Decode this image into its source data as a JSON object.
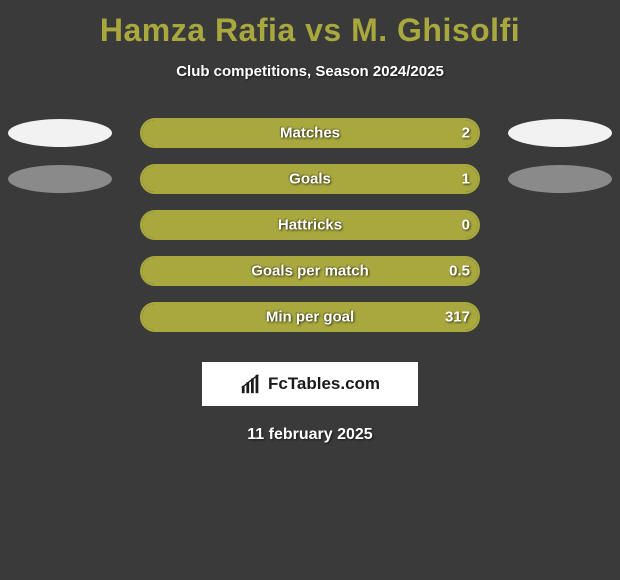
{
  "title": "Hamza Rafia vs M. Ghisolfi",
  "subtitle": "Club competitions, Season 2024/2025",
  "date": "11 february 2025",
  "logo_text": "FcTables.com",
  "colors": {
    "background": "#3a3a3a",
    "accent": "#a8a83e",
    "text": "#ffffff",
    "ellipse_light": "#f2f2f2",
    "ellipse_dark": "#8a8a8a"
  },
  "stats": [
    {
      "label": "Matches",
      "value_right": "2",
      "fill_pct": 100,
      "ellipse_left": "#f2f2f2",
      "ellipse_right": "#f2f2f2"
    },
    {
      "label": "Goals",
      "value_right": "1",
      "fill_pct": 100,
      "ellipse_left": "#8a8a8a",
      "ellipse_right": "#8a8a8a"
    },
    {
      "label": "Hattricks",
      "value_right": "0",
      "fill_pct": 100,
      "ellipse_left": null,
      "ellipse_right": null
    },
    {
      "label": "Goals per match",
      "value_right": "0.5",
      "fill_pct": 100,
      "ellipse_left": null,
      "ellipse_right": null
    },
    {
      "label": "Min per goal",
      "value_right": "317",
      "fill_pct": 100,
      "ellipse_left": null,
      "ellipse_right": null
    }
  ]
}
